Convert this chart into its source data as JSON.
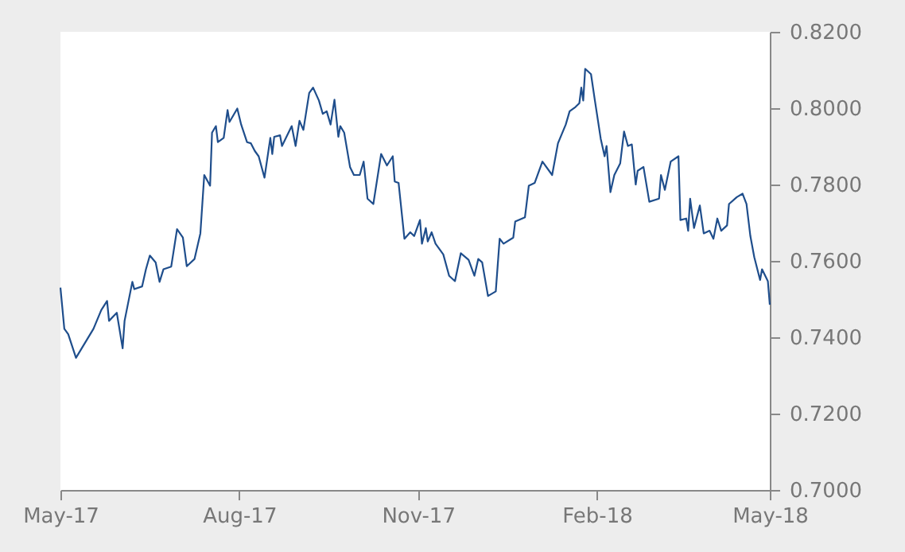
{
  "chart_data": {
    "type": "line",
    "x": [
      "2017-05-01",
      "2017-05-03",
      "2017-05-05",
      "2017-05-09",
      "2017-05-18",
      "2017-05-22",
      "2017-05-25",
      "2017-05-26",
      "2017-05-30",
      "2017-06-02",
      "2017-06-03",
      "2017-06-07",
      "2017-06-08",
      "2017-06-12",
      "2017-06-14",
      "2017-06-16",
      "2017-06-19",
      "2017-06-21",
      "2017-06-23",
      "2017-06-27",
      "2017-06-30",
      "2017-07-03",
      "2017-07-05",
      "2017-07-09",
      "2017-07-12",
      "2017-07-14",
      "2017-07-17",
      "2017-07-18",
      "2017-07-20",
      "2017-07-21",
      "2017-07-24",
      "2017-07-26",
      "2017-07-27",
      "2017-07-31",
      "2017-08-02",
      "2017-08-05",
      "2017-08-07",
      "2017-08-09",
      "2017-08-11",
      "2017-08-14",
      "2017-08-17",
      "2017-08-18",
      "2017-08-19",
      "2017-08-22",
      "2017-08-23",
      "2017-08-28",
      "2017-08-30",
      "2017-09-01",
      "2017-09-03",
      "2017-09-06",
      "2017-09-08",
      "2017-09-11",
      "2017-09-13",
      "2017-09-15",
      "2017-09-17",
      "2017-09-19",
      "2017-09-21",
      "2017-09-22",
      "2017-09-24",
      "2017-09-27",
      "2017-09-29",
      "2017-10-02",
      "2017-10-04",
      "2017-10-06",
      "2017-10-09",
      "2017-10-13",
      "2017-10-16",
      "2017-10-19",
      "2017-10-20",
      "2017-10-22",
      "2017-10-25",
      "2017-10-28",
      "2017-10-30",
      "2017-11-02",
      "2017-11-03",
      "2017-11-05",
      "2017-11-06",
      "2017-11-08",
      "2017-11-10",
      "2017-11-14",
      "2017-11-17",
      "2017-11-20",
      "2017-11-23",
      "2017-11-27",
      "2017-11-30",
      "2017-12-02",
      "2017-12-04",
      "2017-12-07",
      "2017-12-11",
      "2017-12-13",
      "2017-12-15",
      "2017-12-20",
      "2017-12-21",
      "2017-12-26",
      "2017-12-28",
      "2017-12-31",
      "2018-01-04",
      "2018-01-09",
      "2018-01-12",
      "2018-01-16",
      "2018-01-18",
      "2018-01-21",
      "2018-01-23",
      "2018-01-24",
      "2018-01-25",
      "2018-01-26",
      "2018-01-29",
      "2018-01-31",
      "2018-02-03",
      "2018-02-05",
      "2018-02-06",
      "2018-02-08",
      "2018-02-10",
      "2018-02-13",
      "2018-02-15",
      "2018-02-17",
      "2018-02-19",
      "2018-02-21",
      "2018-02-22",
      "2018-02-25",
      "2018-02-28",
      "2018-03-05",
      "2018-03-06",
      "2018-03-08",
      "2018-03-11",
      "2018-03-15",
      "2018-03-16",
      "2018-03-19",
      "2018-03-20",
      "2018-03-21",
      "2018-03-23",
      "2018-03-26",
      "2018-03-28",
      "2018-03-31",
      "2018-04-02",
      "2018-04-04",
      "2018-04-06",
      "2018-04-09",
      "2018-04-10",
      "2018-04-14",
      "2018-04-17",
      "2018-04-19",
      "2018-04-21",
      "2018-04-23",
      "2018-04-26",
      "2018-04-27",
      "2018-04-30",
      "2018-05-01"
    ],
    "series": [
      {
        "color": "#1f4e8c",
        "values": [
          0.753,
          0.7422,
          0.7408,
          0.7346,
          0.7422,
          0.7471,
          0.7495,
          0.7443,
          0.7464,
          0.7371,
          0.7443,
          0.7545,
          0.7526,
          0.7533,
          0.7578,
          0.7614,
          0.7596,
          0.7545,
          0.7578,
          0.7585,
          0.7683,
          0.7661,
          0.7586,
          0.7605,
          0.7672,
          0.7825,
          0.7797,
          0.7936,
          0.7953,
          0.7911,
          0.7922,
          0.7995,
          0.7964,
          0.7999,
          0.7957,
          0.7911,
          0.7908,
          0.7888,
          0.7874,
          0.7818,
          0.7922,
          0.788,
          0.7925,
          0.7929,
          0.7901,
          0.7953,
          0.7901,
          0.7967,
          0.7943,
          0.804,
          0.8054,
          0.802,
          0.7985,
          0.7992,
          0.7957,
          0.8022,
          0.7925,
          0.7953,
          0.7936,
          0.7846,
          0.7825,
          0.7825,
          0.786,
          0.7763,
          0.7749,
          0.788,
          0.785,
          0.7874,
          0.7808,
          0.7804,
          0.7658,
          0.7675,
          0.7665,
          0.7707,
          0.7645,
          0.7686,
          0.7651,
          0.7675,
          0.7645,
          0.7617,
          0.7561,
          0.7547,
          0.762,
          0.7603,
          0.7561,
          0.7605,
          0.7596,
          0.7508,
          0.752,
          0.7658,
          0.7645,
          0.7661,
          0.7703,
          0.7714,
          0.7797,
          0.7804,
          0.786,
          0.7825,
          0.7908,
          0.7957,
          0.7992,
          0.8003,
          0.8013,
          0.8054,
          0.802,
          0.8103,
          0.8089,
          0.802,
          0.792,
          0.7874,
          0.7901,
          0.778,
          0.7825,
          0.7855,
          0.7939,
          0.7901,
          0.7905,
          0.78,
          0.7836,
          0.7846,
          0.7755,
          0.7763,
          0.7825,
          0.7786,
          0.786,
          0.7874,
          0.7707,
          0.7711,
          0.7679,
          0.7763,
          0.7686,
          0.7745,
          0.7672,
          0.7679,
          0.7658,
          0.7711,
          0.7679,
          0.7693,
          0.7749,
          0.7767,
          0.7776,
          0.7749,
          0.7665,
          0.761,
          0.755,
          0.7578,
          0.7547,
          0.7485
        ]
      }
    ],
    "xlim": [
      "2017-05-01",
      "2018-05-01"
    ],
    "xticks": [
      {
        "value": "2017-05-01",
        "label": "May-17"
      },
      {
        "value": "2017-08-01",
        "label": "Aug-17"
      },
      {
        "value": "2017-11-01",
        "label": "Nov-17"
      },
      {
        "value": "2018-02-01",
        "label": "Feb-18"
      },
      {
        "value": "2018-05-01",
        "label": "May-18"
      }
    ],
    "ylim": [
      0.7,
      0.82
    ],
    "yticks": [
      {
        "value": 0.7,
        "label": "0.7000"
      },
      {
        "value": 0.72,
        "label": "0.7200"
      },
      {
        "value": 0.74,
        "label": "0.7400"
      },
      {
        "value": 0.76,
        "label": "0.7600"
      },
      {
        "value": 0.78,
        "label": "0.7800"
      },
      {
        "value": 0.8,
        "label": "0.8000"
      },
      {
        "value": 0.82,
        "label": "0.8200"
      }
    ],
    "grid": false,
    "marker": "none",
    "line_style": "solid"
  }
}
